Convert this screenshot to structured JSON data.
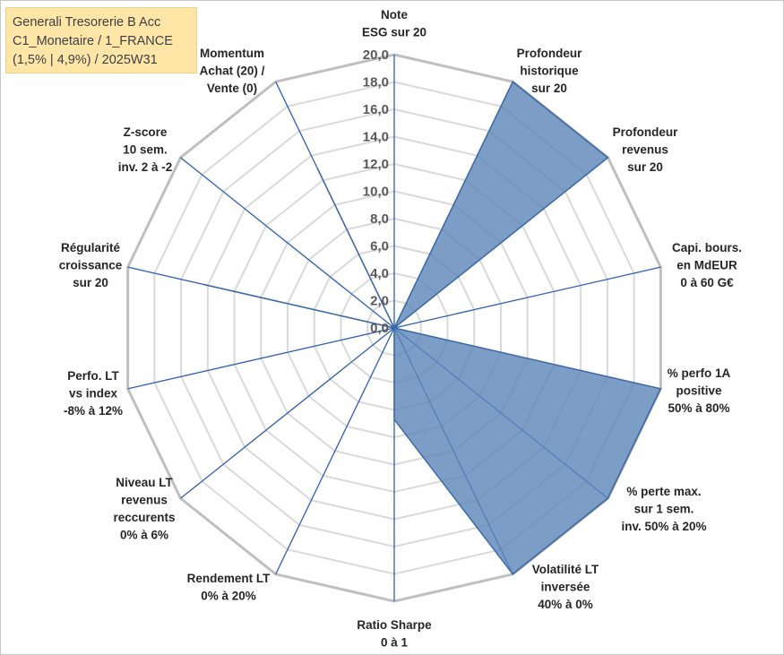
{
  "title_box": {
    "line1": "Generali Tresorerie B Acc",
    "line2": "C1_Monetaire / 1_FRANCE",
    "line3": "(1,5% | 4,9%) / 2025W31"
  },
  "colors": {
    "fill": "#5b86b8",
    "stroke": "#3d6aa5",
    "spoke": "#2f5fb3",
    "grid_outer": "#bfbfbf",
    "grid_inner": "#d9d9d9",
    "title_bg": "#ffe6a6"
  },
  "chart_data": {
    "type": "radar",
    "title": "",
    "r_range": [
      0,
      20
    ],
    "r_ticks": [
      "0,0",
      "2,0",
      "4,0",
      "6,0",
      "8,0",
      "10,0",
      "12,0",
      "14,0",
      "16,0",
      "18,0",
      "20,0"
    ],
    "grid": true,
    "categories": [
      [
        "Note",
        "ESG sur 20"
      ],
      [
        "Profondeur",
        "historique",
        "sur 20"
      ],
      [
        "Profondeur",
        "revenus",
        "sur 20"
      ],
      [
        "Capi. bours.",
        "en MdEUR",
        "0 à 60 G€"
      ],
      [
        "% perfo 1A",
        "positive",
        "50% à 80%"
      ],
      [
        "% perte max.",
        "sur 1 sem.",
        "inv. 50% à 20%"
      ],
      [
        "Volatilité LT",
        "inversée",
        "40% à 0%"
      ],
      [
        "Ratio Sharpe",
        "0 à 1"
      ],
      [
        "Rendement LT",
        "0% à 20%"
      ],
      [
        "Niveau LT",
        "revenus",
        "reccurents",
        "0% à 6%"
      ],
      [
        "Perfo. LT",
        "vs index",
        "-8% à 12%"
      ],
      [
        "Régularité",
        "croissance",
        "sur 20"
      ],
      [
        "Z-score",
        "10 sem.",
        "inv. 2 à -2"
      ],
      [
        "Momentum",
        "Achat (20) /",
        "Vente (0)"
      ]
    ],
    "series": [
      {
        "values": [
          0,
          20,
          20,
          0,
          20,
          20,
          20,
          6.7,
          0,
          0,
          0,
          14.3,
          0,
          13
        ]
      }
    ]
  }
}
